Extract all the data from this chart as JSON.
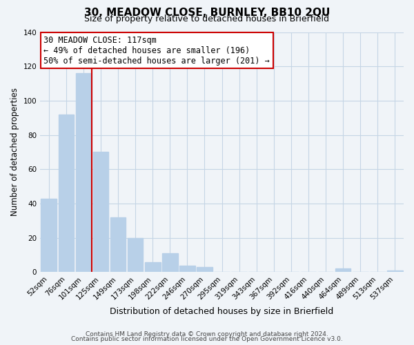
{
  "title": "30, MEADOW CLOSE, BURNLEY, BB10 2QU",
  "subtitle": "Size of property relative to detached houses in Brierfield",
  "xlabel": "Distribution of detached houses by size in Brierfield",
  "ylabel": "Number of detached properties",
  "bar_labels": [
    "52sqm",
    "76sqm",
    "101sqm",
    "125sqm",
    "149sqm",
    "173sqm",
    "198sqm",
    "222sqm",
    "246sqm",
    "270sqm",
    "295sqm",
    "319sqm",
    "343sqm",
    "367sqm",
    "392sqm",
    "416sqm",
    "440sqm",
    "464sqm",
    "489sqm",
    "513sqm",
    "537sqm"
  ],
  "bar_heights": [
    43,
    92,
    116,
    70,
    32,
    20,
    6,
    11,
    4,
    3,
    0,
    0,
    0,
    0,
    0,
    0,
    0,
    2,
    0,
    0,
    1
  ],
  "bar_color": "#b8d0e8",
  "vline_color": "#cc0000",
  "vline_x": 2.5,
  "ylim": [
    0,
    140
  ],
  "yticks": [
    0,
    20,
    40,
    60,
    80,
    100,
    120,
    140
  ],
  "annotation_title": "30 MEADOW CLOSE: 117sqm",
  "annotation_line1": "← 49% of detached houses are smaller (196)",
  "annotation_line2": "50% of semi-detached houses are larger (201) →",
  "footer1": "Contains HM Land Registry data © Crown copyright and database right 2024.",
  "footer2": "Contains public sector information licensed under the Open Government Licence v3.0.",
  "background_color": "#f0f4f8",
  "grid_color": "#c5d5e5"
}
